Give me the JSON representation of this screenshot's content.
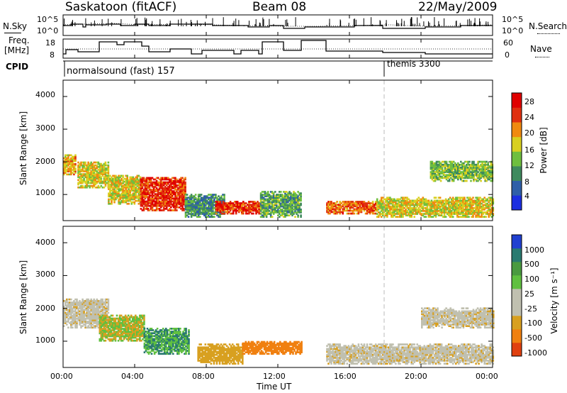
{
  "header": {
    "station": "Saskatoon (fitACF)",
    "beam": "Beam 08",
    "date": "22/May/2009"
  },
  "top_panel": {
    "left_label": "N.Sky",
    "right_label": "N.Search",
    "left_ticks": [
      "10^5",
      "10^0"
    ],
    "right_ticks": [
      "10^5",
      "10^0"
    ]
  },
  "freq_panel": {
    "left_label_1": "Freq.",
    "left_label_2": "[MHz]",
    "right_label": "Nave",
    "left_ticks": [
      "18",
      "8"
    ],
    "right_ticks": [
      "60",
      "0"
    ]
  },
  "cpid": {
    "label": "CPID",
    "program_1": "normalsound (fast) 157",
    "program_2": "themis 3300"
  },
  "power_panel": {
    "ylabel": "Slant Range [km]",
    "yticks": [
      "4000",
      "3000",
      "2000",
      "1000"
    ],
    "colorbar_label": "Power [dB]",
    "colorbar_ticks": [
      "28",
      "24",
      "20",
      "16",
      "12",
      "8",
      "4"
    ]
  },
  "velocity_panel": {
    "ylabel": "Slant Range [km]",
    "yticks": [
      "4000",
      "3000",
      "2000",
      "1000"
    ],
    "colorbar_label": "Velocity [m s⁻¹]",
    "colorbar_ticks": [
      "1000",
      "500",
      "100",
      "25",
      "-25",
      "-100",
      "-500",
      "-1000"
    ]
  },
  "xaxis": {
    "label": "Time UT",
    "ticks": [
      "00:00",
      "04:00",
      "08:00",
      "12:00",
      "16:00",
      "20:00",
      "00:00"
    ]
  },
  "colors": {
    "power_scale": [
      "#1c2fe0",
      "#2f5fa8",
      "#3f8a5e",
      "#6fbf3f",
      "#d8d020",
      "#f08a10",
      "#e03010",
      "#e00000"
    ],
    "velocity_scale": [
      "#2040d0",
      "#2a7a70",
      "#4a9a40",
      "#60c040",
      "#c0c0b0",
      "#d8a020",
      "#f08010",
      "#e04010",
      "#e00000"
    ]
  },
  "chart_data": [
    {
      "type": "heatmap",
      "title": "",
      "xlabel": "Time UT",
      "ylabel": "Slant Range [km]",
      "xlim": [
        "00:00",
        "24:00"
      ],
      "ylim": [
        200,
        4500
      ],
      "quantity": "Power [dB]",
      "colorbar_range": [
        0,
        32
      ],
      "gap": [
        "13:24",
        "14:40"
      ],
      "regions": [
        {
          "t": [
            0.0,
            0.7
          ],
          "range": [
            1600,
            2200
          ],
          "value": 20
        },
        {
          "t": [
            0.8,
            2.5
          ],
          "range": [
            1200,
            2000
          ],
          "value": 18
        },
        {
          "t": [
            2.5,
            4.3
          ],
          "range": [
            700,
            1600
          ],
          "value": 18
        },
        {
          "t": [
            4.3,
            6.8
          ],
          "range": [
            500,
            1500
          ],
          "value": 27
        },
        {
          "t": [
            6.8,
            9.0
          ],
          "range": [
            300,
            1000
          ],
          "value": 10
        },
        {
          "t": [
            8.5,
            11.0
          ],
          "range": [
            400,
            800
          ],
          "value": 27
        },
        {
          "t": [
            11.0,
            13.3
          ],
          "range": [
            300,
            1100
          ],
          "value": 12
        },
        {
          "t": [
            14.7,
            17.5
          ],
          "range": [
            400,
            800
          ],
          "value": 24
        },
        {
          "t": [
            17.5,
            24.0
          ],
          "range": [
            300,
            900
          ],
          "value": 18
        },
        {
          "t": [
            20.5,
            24.0
          ],
          "range": [
            1400,
            2000
          ],
          "value": 14
        }
      ]
    },
    {
      "type": "heatmap",
      "title": "",
      "xlabel": "Time UT",
      "ylabel": "Slant Range [km]",
      "xlim": [
        "00:00",
        "24:00"
      ],
      "ylim": [
        200,
        4500
      ],
      "quantity": "Velocity [m s⁻¹]",
      "colorbar_range": [
        -1000,
        1000
      ],
      "gap": [
        "13:24",
        "14:40"
      ],
      "regions": [
        {
          "t": [
            0.0,
            2.5
          ],
          "range": [
            1400,
            2300
          ],
          "value": 0
        },
        {
          "t": [
            2.0,
            4.5
          ],
          "range": [
            1000,
            1800
          ],
          "value": 100
        },
        {
          "t": [
            4.5,
            7.0
          ],
          "range": [
            600,
            1400
          ],
          "value": 300
        },
        {
          "t": [
            7.5,
            10.0
          ],
          "range": [
            300,
            900
          ],
          "value": -100
        },
        {
          "t": [
            10.0,
            13.3
          ],
          "range": [
            600,
            1000
          ],
          "value": -200
        },
        {
          "t": [
            14.7,
            24.0
          ],
          "range": [
            300,
            900
          ],
          "value": 0
        },
        {
          "t": [
            20.0,
            24.0
          ],
          "range": [
            1400,
            2000
          ],
          "value": 0
        }
      ]
    }
  ]
}
